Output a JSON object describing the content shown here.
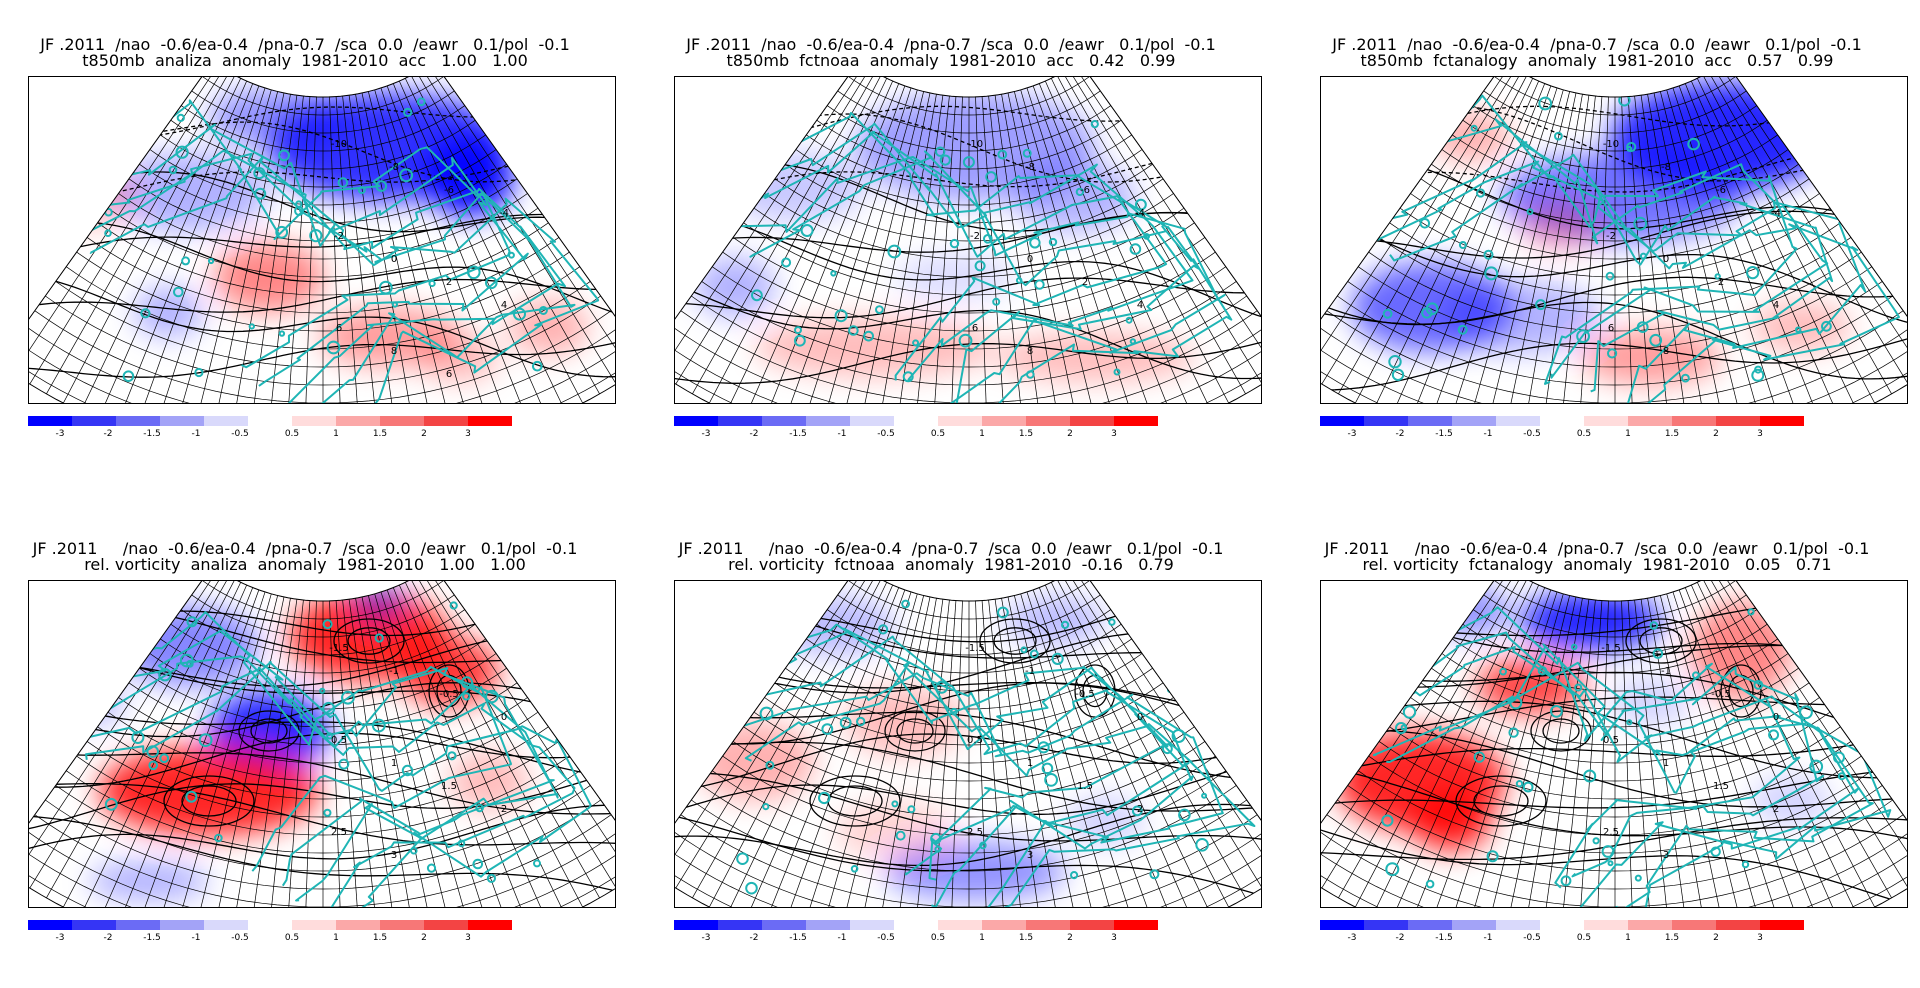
{
  "panels": [
    {
      "title_line1": "JF .2011  /nao  -0.6/ea-0.4  /pna-0.7  /sca  0.0  /eawr   0.1/pol  -0.1",
      "title_line2": "t850mb  analiza  anomaly  1981-2010  acc   1.00   1.00",
      "map_labels": [
        "-10",
        "-8",
        "-6",
        "-4",
        "-2",
        "0",
        "2",
        "4",
        "6",
        "8",
        "6"
      ]
    },
    {
      "title_line1": "JF .2011  /nao  -0.6/ea-0.4  /pna-0.7  /sca  0.0  /eawr   0.1/pol  -0.1",
      "title_line2": "t850mb  fctnoaa  anomaly  1981-2010  acc   0.42   0.99",
      "map_labels": [
        "-10",
        "-8",
        "-6",
        "-4",
        "-2",
        "0",
        "2",
        "4",
        "6",
        "8"
      ]
    },
    {
      "title_line1": "JF .2011  /nao  -0.6/ea-0.4  /pna-0.7  /sca  0.0  /eawr   0.1/pol  -0.1",
      "title_line2": "t850mb  fctanalogy  anomaly  1981-2010  acc   0.57   0.99",
      "map_labels": [
        "-10",
        "-8",
        "-6",
        "-4",
        "-2",
        "0",
        "2",
        "4",
        "6",
        "8"
      ]
    },
    {
      "title_line1": "JF .2011     /nao  -0.6/ea-0.4  /pna-0.7  /sca  0.0  /eawr   0.1/pol  -0.1",
      "title_line2": "rel. vorticity  analiza  anomaly  1981-2010   1.00   1.00",
      "map_labels": [
        "-1.5",
        "-1",
        "-0.5",
        "0",
        "0.5",
        "1",
        "1.5",
        "2",
        "2.5",
        "3"
      ]
    },
    {
      "title_line1": "JF .2011     /nao  -0.6/ea-0.4  /pna-0.7  /sca  0.0  /eawr   0.1/pol  -0.1",
      "title_line2": "rel. vorticity  fctnoaa  anomaly  1981-2010  -0.16   0.79",
      "map_labels": [
        "-1.5",
        "-1",
        "-0.5",
        "0",
        "0.5",
        "1",
        "1.5",
        "2",
        "2.5",
        "3"
      ]
    },
    {
      "title_line1": "JF .2011     /nao  -0.6/ea-0.4  /pna-0.7  /sca  0.0  /eawr   0.1/pol  -0.1",
      "title_line2": "rel. vorticity  fctanalogy  anomaly  1981-2010   0.05   0.71",
      "map_labels": [
        "-1.5",
        "-1",
        "-0.5",
        "0",
        "0.5",
        "1",
        "1.5",
        "2",
        "2.5",
        "3"
      ]
    }
  ],
  "colorbar": {
    "labels": [
      "-3",
      "-2",
      "-1.5",
      "-1",
      "-0.5",
      "0.5",
      "1",
      "1.5",
      "2",
      "3"
    ],
    "colors": [
      "#0000ff",
      "#3535f5",
      "#6b6bf5",
      "#a3a3f7",
      "#d9d9fb",
      "#ffdcdc",
      "#fba8a8",
      "#f77777",
      "#f34444",
      "#ff0000"
    ]
  },
  "colors": {
    "coastline": "#1fb5b5",
    "contour": "#000000",
    "grid": "#000000",
    "negative": "#0000ff",
    "positive": "#ff0000"
  }
}
